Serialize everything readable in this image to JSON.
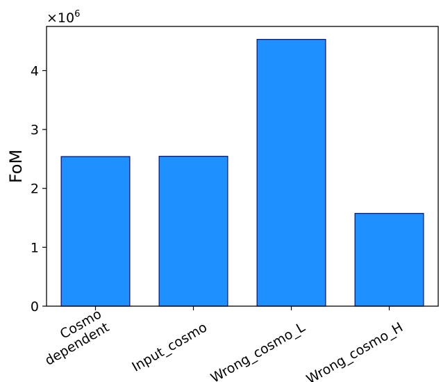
{
  "chart_data": {
    "type": "bar",
    "categories": [
      [
        "Cosmo",
        "dependent"
      ],
      [
        "Input_cosmo"
      ],
      [
        "Wrong_cosmo_L"
      ],
      [
        "Wrong_cosmo_H"
      ]
    ],
    "values": [
      2540000,
      2545000,
      4530000,
      1575000
    ],
    "xlabel": "",
    "ylabel": "FoM",
    "ylim": [
      0,
      4750000
    ],
    "yticks": [
      0,
      1000000,
      2000000,
      3000000,
      4000000
    ],
    "ytick_labels": [
      "0",
      "1",
      "2",
      "3",
      "4"
    ],
    "offset_base": "×10",
    "offset_exp": "6",
    "grid": false,
    "colors": {
      "bar_fill": "#1e90ff",
      "bar_edge": "#0a1a7a",
      "axis": "#000000"
    }
  }
}
